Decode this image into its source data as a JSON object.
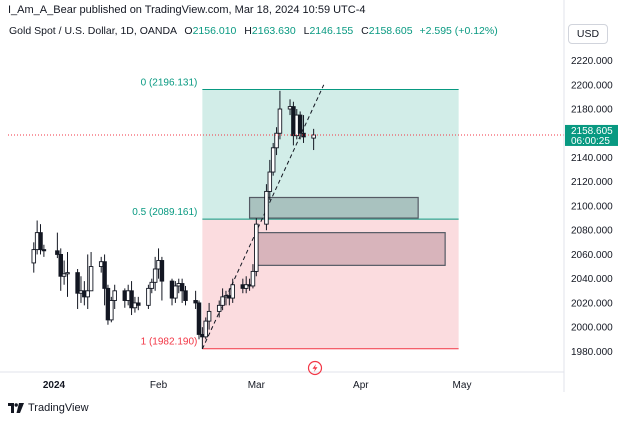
{
  "caption": "I_Am_A_Bear published on TradingView.com, Mar 18, 2024 10:59 UTC-4",
  "legend": {
    "symbol": "Gold Spot / U.S. Dollar, 1D, OANDA",
    "o_key": "O",
    "o": "2156.010",
    "h_key": "H",
    "h": "2163.630",
    "l_key": "L",
    "l": "2146.155",
    "c_key": "C",
    "c": "2158.605",
    "change": "+2.595 (+0.12%)"
  },
  "currency_button": "USD",
  "price_tag": {
    "price": "2158.605",
    "countdown": "06:00:25"
  },
  "footer": {
    "brand": "TradingView"
  },
  "colors": {
    "up": "#089981",
    "down": "#f23645",
    "candle": "#131722",
    "fib_upper_fill": "#d2ede8",
    "fib_lower_fill": "#fbdcdf",
    "fib_upper_line": "#089981",
    "fib_lower_line": "#f23645",
    "zone1_fill": "#a9c2bf",
    "zone2_fill": "#d8b4bb"
  },
  "chart_data": {
    "type": "candlestick",
    "symbol": "XAUUSD",
    "interval": "1D",
    "ylim": [
      1963,
      2232
    ],
    "y_ticks": [
      1980,
      2000,
      2020,
      2040,
      2060,
      2080,
      2100,
      2120,
      2140,
      2160,
      2180,
      2200,
      2220
    ],
    "y_tick_labels": [
      "1980.000",
      "2000.000",
      "2020.000",
      "2040.000",
      "2060.000",
      "2080.000",
      "2100.000",
      "2120.000",
      "2140.000",
      "2160.000",
      "2180.000",
      "2200.000",
      "2220.000"
    ],
    "x_labels": [
      {
        "label": "2024",
        "date": "2024-01-01",
        "bold": true
      },
      {
        "label": "Feb",
        "date": "2024-02-01"
      },
      {
        "label": "Mar",
        "date": "2024-03-01"
      },
      {
        "label": "Apr",
        "date": "2024-04-01"
      },
      {
        "label": "May",
        "date": "2024-05-01"
      }
    ],
    "last_price": 2158.605,
    "fib_retracement": {
      "start_date": "2024-02-14",
      "end_date": "2024-04-30",
      "levels": [
        {
          "ratio": 0,
          "label": "0 (2196.131)",
          "price": 2196.131
        },
        {
          "ratio": 0.5,
          "label": "0.5 (2089.161)",
          "price": 2089.161
        },
        {
          "ratio": 1,
          "label": "1 (1982.190)",
          "price": 1982.19
        }
      ]
    },
    "zones": [
      {
        "start_date": "2024-02-28",
        "end_date": "2024-04-18",
        "high": 2107,
        "low": 2090
      },
      {
        "start_date": "2024-03-01",
        "end_date": "2024-04-26",
        "high": 2078,
        "low": 2051
      }
    ],
    "trendline": {
      "start_date": "2024-02-14",
      "start_price": 1982,
      "end_date": "2024-03-21",
      "end_price": 2200
    },
    "candles": [
      {
        "date": "2023-12-26",
        "o": 2053,
        "h": 2070,
        "l": 2045,
        "c": 2064
      },
      {
        "date": "2023-12-27",
        "o": 2064,
        "h": 2088,
        "l": 2060,
        "c": 2078
      },
      {
        "date": "2023-12-28",
        "o": 2078,
        "h": 2085,
        "l": 2060,
        "c": 2064
      },
      {
        "date": "2023-12-29",
        "o": 2064,
        "h": 2068,
        "l": 2058,
        "c": 2063
      },
      {
        "date": "2024-01-02",
        "o": 2063,
        "h": 2078,
        "l": 2057,
        "c": 2060
      },
      {
        "date": "2024-01-03",
        "o": 2060,
        "h": 2065,
        "l": 2030,
        "c": 2042
      },
      {
        "date": "2024-01-04",
        "o": 2042,
        "h": 2055,
        "l": 2035,
        "c": 2044
      },
      {
        "date": "2024-01-05",
        "o": 2044,
        "h": 2062,
        "l": 2025,
        "c": 2045
      },
      {
        "date": "2024-01-08",
        "o": 2045,
        "h": 2048,
        "l": 2015,
        "c": 2028
      },
      {
        "date": "2024-01-09",
        "o": 2028,
        "h": 2042,
        "l": 2020,
        "c": 2030
      },
      {
        "date": "2024-01-10",
        "o": 2030,
        "h": 2038,
        "l": 2018,
        "c": 2025
      },
      {
        "date": "2024-01-11",
        "o": 2025,
        "h": 2060,
        "l": 2015,
        "c": 2030
      },
      {
        "date": "2024-01-12",
        "o": 2030,
        "h": 2062,
        "l": 2030,
        "c": 2050
      },
      {
        "date": "2024-01-15",
        "o": 2050,
        "h": 2058,
        "l": 2045,
        "c": 2054
      },
      {
        "date": "2024-01-16",
        "o": 2054,
        "h": 2060,
        "l": 2018,
        "c": 2032
      },
      {
        "date": "2024-01-17",
        "o": 2032,
        "h": 2035,
        "l": 2002,
        "c": 2006
      },
      {
        "date": "2024-01-18",
        "o": 2006,
        "h": 2025,
        "l": 2004,
        "c": 2022
      },
      {
        "date": "2024-01-19",
        "o": 2022,
        "h": 2035,
        "l": 2015,
        "c": 2030
      },
      {
        "date": "2024-01-22",
        "o": 2030,
        "h": 2032,
        "l": 2016,
        "c": 2022
      },
      {
        "date": "2024-01-23",
        "o": 2022,
        "h": 2035,
        "l": 2018,
        "c": 2030
      },
      {
        "date": "2024-01-24",
        "o": 2030,
        "h": 2038,
        "l": 2010,
        "c": 2016
      },
      {
        "date": "2024-01-25",
        "o": 2016,
        "h": 2025,
        "l": 2012,
        "c": 2020
      },
      {
        "date": "2024-01-26",
        "o": 2020,
        "h": 2025,
        "l": 2014,
        "c": 2018
      },
      {
        "date": "2024-01-29",
        "o": 2018,
        "h": 2035,
        "l": 2015,
        "c": 2032
      },
      {
        "date": "2024-01-30",
        "o": 2032,
        "h": 2040,
        "l": 2028,
        "c": 2037
      },
      {
        "date": "2024-01-31",
        "o": 2037,
        "h": 2058,
        "l": 2030,
        "c": 2048
      },
      {
        "date": "2024-02-01",
        "o": 2048,
        "h": 2065,
        "l": 2040,
        "c": 2055
      },
      {
        "date": "2024-02-02",
        "o": 2055,
        "h": 2058,
        "l": 2022,
        "c": 2038
      },
      {
        "date": "2024-02-05",
        "o": 2038,
        "h": 2040,
        "l": 2018,
        "c": 2024
      },
      {
        "date": "2024-02-06",
        "o": 2024,
        "h": 2038,
        "l": 2020,
        "c": 2034
      },
      {
        "date": "2024-02-07",
        "o": 2034,
        "h": 2040,
        "l": 2028,
        "c": 2036
      },
      {
        "date": "2024-02-08",
        "o": 2036,
        "h": 2040,
        "l": 2020,
        "c": 2030
      },
      {
        "date": "2024-02-09",
        "o": 2030,
        "h": 2034,
        "l": 2018,
        "c": 2022
      },
      {
        "date": "2024-02-12",
        "o": 2022,
        "h": 2030,
        "l": 2015,
        "c": 2020
      },
      {
        "date": "2024-02-13",
        "o": 2020,
        "h": 2022,
        "l": 1990,
        "c": 1994
      },
      {
        "date": "2024-02-14",
        "o": 1994,
        "h": 2000,
        "l": 1982,
        "c": 1992
      },
      {
        "date": "2024-02-15",
        "o": 1992,
        "h": 2008,
        "l": 1990,
        "c": 2005
      },
      {
        "date": "2024-02-16",
        "o": 2005,
        "h": 2020,
        "l": 1998,
        "c": 2013
      },
      {
        "date": "2024-02-19",
        "o": 2013,
        "h": 2022,
        "l": 2008,
        "c": 2018
      },
      {
        "date": "2024-02-20",
        "o": 2018,
        "h": 2032,
        "l": 2014,
        "c": 2025
      },
      {
        "date": "2024-02-21",
        "o": 2025,
        "h": 2030,
        "l": 2018,
        "c": 2026
      },
      {
        "date": "2024-02-22",
        "o": 2026,
        "h": 2032,
        "l": 2018,
        "c": 2024
      },
      {
        "date": "2024-02-23",
        "o": 2024,
        "h": 2040,
        "l": 2020,
        "c": 2035
      },
      {
        "date": "2024-02-26",
        "o": 2035,
        "h": 2040,
        "l": 2028,
        "c": 2032
      },
      {
        "date": "2024-02-27",
        "o": 2032,
        "h": 2042,
        "l": 2028,
        "c": 2035
      },
      {
        "date": "2024-02-28",
        "o": 2035,
        "h": 2040,
        "l": 2030,
        "c": 2034
      },
      {
        "date": "2024-02-29",
        "o": 2034,
        "h": 2052,
        "l": 2032,
        "c": 2046
      },
      {
        "date": "2024-03-01",
        "o": 2046,
        "h": 2090,
        "l": 2042,
        "c": 2085
      },
      {
        "date": "2024-03-04",
        "o": 2085,
        "h": 2118,
        "l": 2080,
        "c": 2112
      },
      {
        "date": "2024-03-05",
        "o": 2112,
        "h": 2138,
        "l": 2105,
        "c": 2128
      },
      {
        "date": "2024-03-06",
        "o": 2128,
        "h": 2152,
        "l": 2125,
        "c": 2148
      },
      {
        "date": "2024-03-07",
        "o": 2148,
        "h": 2165,
        "l": 2142,
        "c": 2160
      },
      {
        "date": "2024-03-08",
        "o": 2160,
        "h": 2195,
        "l": 2155,
        "c": 2180
      },
      {
        "date": "2024-03-11",
        "o": 2180,
        "h": 2188,
        "l": 2175,
        "c": 2182
      },
      {
        "date": "2024-03-12",
        "o": 2182,
        "h": 2186,
        "l": 2150,
        "c": 2158
      },
      {
        "date": "2024-03-13",
        "o": 2158,
        "h": 2180,
        "l": 2155,
        "c": 2175
      },
      {
        "date": "2024-03-14",
        "o": 2175,
        "h": 2178,
        "l": 2155,
        "c": 2160
      },
      {
        "date": "2024-03-15",
        "o": 2160,
        "h": 2175,
        "l": 2152,
        "c": 2157
      },
      {
        "date": "2024-03-18",
        "o": 2156.01,
        "h": 2163.63,
        "l": 2146.155,
        "c": 2158.605
      }
    ]
  }
}
